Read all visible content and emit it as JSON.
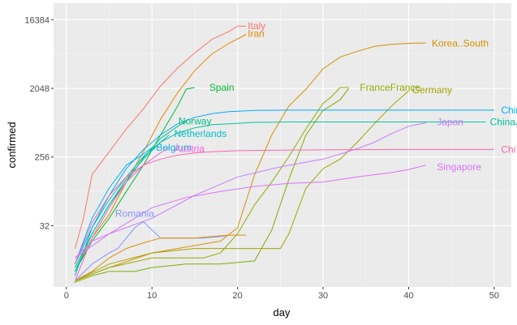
{
  "chart_data": {
    "type": "line",
    "xlabel": "day",
    "ylabel": "confirmed",
    "y_scale": "log2",
    "xlim": [
      -1.5,
      52
    ],
    "ylim": [
      5.0,
      27000
    ],
    "x_ticks": [
      0,
      10,
      20,
      30,
      40,
      50
    ],
    "y_ticks": [
      32,
      256,
      2048,
      16384
    ],
    "x_tick_labels": [
      "0",
      "10",
      "20",
      "30",
      "40",
      "50"
    ],
    "y_tick_labels": [
      "32",
      "256",
      "2048",
      "16384"
    ],
    "grid": true,
    "legend": "none (series labelled at line ends)",
    "series": [
      {
        "name": "Italy",
        "color": "#F8766D",
        "label": "Italy",
        "x": [
          1,
          2,
          3,
          5,
          7,
          9,
          11,
          13,
          15,
          17,
          19,
          20,
          21
        ],
        "y": [
          16,
          40,
          150,
          300,
          600,
          1100,
          2200,
          3800,
          6000,
          9000,
          11500,
          13500,
          13500
        ]
      },
      {
        "name": "Iran",
        "color": "#E58700",
        "label": "Iran",
        "x": [
          1,
          3,
          5,
          7,
          9,
          11,
          13,
          15,
          17,
          19,
          21
        ],
        "y": [
          8,
          22,
          45,
          120,
          300,
          800,
          1800,
          3500,
          5800,
          8000,
          10500
        ]
      },
      {
        "name": "Korea..South",
        "color": "#D39200",
        "label": "Korea..South",
        "x": [
          1,
          5,
          10,
          18,
          20,
          22,
          24,
          26,
          28,
          30,
          32,
          34,
          36,
          38,
          40,
          42
        ],
        "y": [
          6,
          9,
          14,
          20,
          30,
          150,
          500,
          1200,
          2000,
          3700,
          5300,
          6300,
          7300,
          7800,
          8000,
          8100
        ]
      },
      {
        "name": "Spain",
        "color": "#00BA38",
        "label": "Spain",
        "x": [
          1,
          3,
          5,
          7,
          9,
          11,
          13,
          14,
          15
        ],
        "y": [
          8,
          20,
          40,
          90,
          200,
          500,
          1200,
          2000,
          2100
        ]
      },
      {
        "name": "France",
        "color": "#93AA00",
        "label": "France",
        "x": [
          1,
          5,
          10,
          16,
          18,
          20,
          22,
          24,
          26,
          28,
          30,
          31,
          32,
          33
        ],
        "y": [
          6,
          9,
          12,
          12,
          14,
          25,
          60,
          120,
          260,
          600,
          1300,
          1600,
          2100,
          2100
        ]
      },
      {
        "name": "France",
        "color": "#7CAE00",
        "label": "France",
        "x": [
          0.9,
          3,
          5,
          8,
          10,
          14,
          18,
          22,
          24,
          26,
          28,
          30,
          32,
          33
        ],
        "y": [
          5.7,
          7,
          8,
          8,
          9,
          10,
          10,
          11,
          28,
          130,
          500,
          1050,
          1450,
          2050
        ]
      },
      {
        "name": "Germany",
        "color": "#A3A500",
        "label": "Germany",
        "x": [
          1,
          5,
          10,
          15,
          20,
          25,
          26,
          28,
          30,
          32,
          34,
          36,
          38,
          40
        ],
        "y": [
          6,
          10,
          14,
          16,
          16,
          16,
          25,
          100,
          180,
          240,
          400,
          700,
          1200,
          1900
        ]
      },
      {
        "name": "Norway",
        "color": "#00BF7D",
        "label": "Norway",
        "x": [
          1,
          3,
          5,
          7,
          9,
          11,
          13,
          14
        ],
        "y": [
          8,
          25,
          60,
          120,
          250,
          450,
          650,
          750
        ]
      },
      {
        "name": "Netherlands",
        "color": "#00BFC4",
        "label": "Netherlands",
        "x": [
          1,
          3,
          5,
          7,
          9,
          11,
          12
        ],
        "y": [
          7,
          30,
          70,
          140,
          260,
          400,
          500
        ]
      },
      {
        "name": "Belgium",
        "color": "#00B4F0",
        "label": "Belgium",
        "x": [
          1,
          3,
          5,
          7,
          9,
          10
        ],
        "y": [
          10,
          40,
          100,
          200,
          280,
          340
        ]
      },
      {
        "name": "Austria",
        "color": "#F564E3",
        "label": "Austria",
        "x": [
          1,
          3,
          5,
          7,
          9,
          11,
          12
        ],
        "y": [
          6,
          22,
          55,
          120,
          200,
          290,
          340
        ]
      },
      {
        "name": "China",
        "color": "#00ADFA",
        "label": "China",
        "x": [
          1,
          3,
          5,
          7,
          9,
          11,
          13,
          15,
          17,
          19,
          22,
          26,
          30,
          35,
          40,
          50
        ],
        "y": [
          10,
          30,
          80,
          180,
          320,
          500,
          700,
          850,
          950,
          1010,
          1050,
          1060,
          1060,
          1060,
          1060,
          1060
        ]
      },
      {
        "name": "ChinaJ",
        "color": "#00C19A",
        "label": "ChinaJ",
        "x": [
          1,
          3,
          5,
          7,
          9,
          11,
          13,
          15,
          17,
          19,
          22,
          26,
          30,
          35,
          40,
          49
        ],
        "y": [
          9,
          25,
          60,
          130,
          240,
          400,
          530,
          620,
          680,
          700,
          730,
          740,
          740,
          740,
          740,
          740
        ]
      },
      {
        "name": "Japan",
        "color": "#C77CFF",
        "label": "Japan",
        "x": [
          1,
          5,
          10,
          15,
          20,
          25,
          30,
          32,
          34,
          36,
          38,
          40,
          42
        ],
        "y": [
          12,
          25,
          40,
          80,
          140,
          190,
          240,
          280,
          330,
          400,
          520,
          650,
          720
        ]
      },
      {
        "name": "China",
        "color": "#FF64B0",
        "label": "Chi",
        "x": [
          1,
          3,
          5,
          7,
          9,
          11,
          13,
          15,
          17,
          20,
          25,
          30,
          35,
          40,
          50
        ],
        "y": [
          10,
          35,
          80,
          140,
          200,
          240,
          270,
          290,
          300,
          310,
          315,
          318,
          320,
          322,
          322
        ]
      },
      {
        "name": "Singapore",
        "color": "#DB72FB",
        "label": "Singapore",
        "x": [
          1,
          3,
          5,
          8,
          10,
          14,
          18,
          22,
          26,
          30,
          34,
          38,
          40,
          42
        ],
        "y": [
          12,
          20,
          25,
          40,
          55,
          75,
          90,
          105,
          115,
          120,
          140,
          160,
          175,
          200
        ]
      },
      {
        "name": "Romania",
        "color": "#8494FF",
        "label": "Romania",
        "x": [
          1,
          3,
          5,
          6,
          8,
          9,
          11,
          13,
          15,
          16,
          18,
          19
        ],
        "y": [
          6,
          10,
          14,
          16,
          30,
          36,
          22,
          22,
          22,
          22,
          23,
          24
        ]
      },
      {
        "name": "Romania",
        "color": "#D89000",
        "label": "",
        "x": [
          1,
          3,
          5,
          7,
          9,
          11,
          13,
          15,
          17,
          19,
          20,
          21
        ],
        "y": [
          6,
          8,
          12,
          16,
          19,
          22,
          22,
          22,
          23,
          24,
          24,
          24
        ]
      }
    ],
    "labels": [
      {
        "text": "Italy",
        "color": "#F8766D",
        "x": 21.2,
        "y": 13500
      },
      {
        "text": "Iran",
        "color": "#E58700",
        "x": 21.2,
        "y": 10800
      },
      {
        "text": "Korea..South",
        "color": "#D39200",
        "x": 42.7,
        "y": 8000
      },
      {
        "text": "Spain",
        "color": "#00BA38",
        "x": 16.7,
        "y": 2100
      },
      {
        "text": "FranceFrance",
        "color": "#93AA00",
        "x": 34.3,
        "y": 2100
      },
      {
        "text": "Germany",
        "color": "#A3A500",
        "x": 40.4,
        "y": 1950
      },
      {
        "text": "Norway",
        "color": "#00BF7D",
        "x": 13.1,
        "y": 760
      },
      {
        "text": "Netherlands",
        "color": "#00BFC4",
        "x": 12.6,
        "y": 520
      },
      {
        "text": "Belgium",
        "color": "#00B4F0",
        "x": 10.5,
        "y": 340
      },
      {
        "text": "Austria",
        "color": "#F564E3",
        "x": 12.6,
        "y": 330
      },
      {
        "text": "China",
        "color": "#00ADFA",
        "x": 50.8,
        "y": 1060
      },
      {
        "text": "ChinaJ",
        "color": "#00C19A",
        "x": 49.5,
        "y": 740
      },
      {
        "text": "Japan",
        "color": "#C77CFF",
        "x": 43.3,
        "y": 740
      },
      {
        "text": "Chi",
        "color": "#FF64B0",
        "x": 50.8,
        "y": 322
      },
      {
        "text": "Singapore",
        "color": "#DB72FB",
        "x": 43.3,
        "y": 190
      },
      {
        "text": "Romania",
        "color": "#8494FF",
        "x": 5.7,
        "y": 46
      }
    ]
  }
}
